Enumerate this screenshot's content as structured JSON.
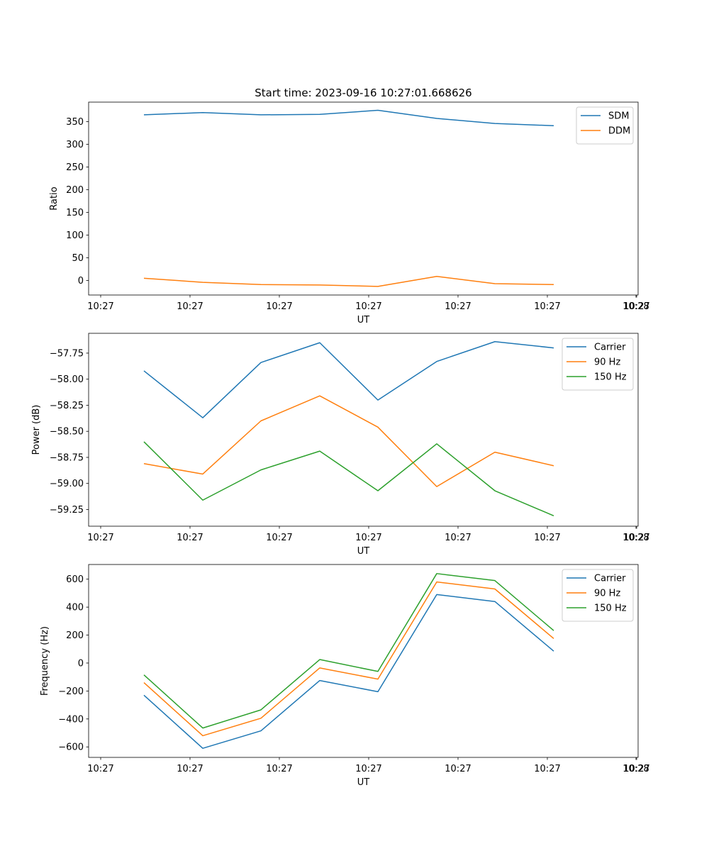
{
  "chart_data": [
    {
      "type": "line",
      "title": "Start time: 2023-09-16 10:27:01.668626",
      "xlabel": "UT",
      "ylabel": "Ratio",
      "x_ticks": [
        "10:27",
        "10:27",
        "10:27",
        "10:27",
        "10:27",
        "10:27",
        "10:27",
        "10:28"
      ],
      "y_ticks": [
        0,
        50,
        100,
        150,
        200,
        250,
        300,
        350
      ],
      "ylim": [
        -32,
        393
      ],
      "legend_position": "top-right",
      "grid": false,
      "series": [
        {
          "name": "SDM",
          "color": "#1f77b4",
          "values": [
            365,
            370,
            365,
            366,
            375,
            357,
            346,
            341
          ]
        },
        {
          "name": "DDM",
          "color": "#ff7f0e",
          "values": [
            5,
            -4,
            -9,
            -10,
            -13,
            9,
            -7,
            -9
          ]
        }
      ]
    },
    {
      "type": "line",
      "title": "",
      "xlabel": "UT",
      "ylabel": "Power (dB)",
      "x_ticks": [
        "10:27",
        "10:27",
        "10:27",
        "10:27",
        "10:27",
        "10:27",
        "10:27",
        "10:28"
      ],
      "y_ticks": [
        -57.75,
        -58.0,
        -58.25,
        -58.5,
        -58.75,
        -59.0,
        -59.25
      ],
      "ylim": [
        -59.41,
        -57.56
      ],
      "legend_position": "top-right",
      "grid": false,
      "series": [
        {
          "name": "Carrier",
          "color": "#1f77b4",
          "values": [
            -57.92,
            -58.37,
            -57.84,
            -57.65,
            -58.2,
            -57.83,
            -57.64,
            -57.7
          ]
        },
        {
          "name": "90 Hz",
          "color": "#ff7f0e",
          "values": [
            -58.81,
            -58.91,
            -58.4,
            -58.16,
            -58.46,
            -59.03,
            -58.7,
            -58.83
          ]
        },
        {
          "name": "150 Hz",
          "color": "#2ca02c",
          "values": [
            -58.6,
            -59.16,
            -58.87,
            -58.69,
            -59.07,
            -58.62,
            -59.07,
            -59.31
          ]
        }
      ]
    },
    {
      "type": "line",
      "title": "",
      "xlabel": "UT",
      "ylabel": "Frequency (Hz)",
      "x_ticks": [
        "10:27",
        "10:27",
        "10:27",
        "10:27",
        "10:27",
        "10:27",
        "10:27",
        "10:28"
      ],
      "y_ticks": [
        600,
        400,
        200,
        0,
        -200,
        -400,
        -600
      ],
      "ylim": [
        -675,
        705
      ],
      "legend_position": "top-right",
      "grid": false,
      "series": [
        {
          "name": "Carrier",
          "color": "#1f77b4",
          "values": [
            -230,
            -610,
            -485,
            -125,
            -205,
            490,
            440,
            85
          ]
        },
        {
          "name": "90 Hz",
          "color": "#ff7f0e",
          "values": [
            -140,
            -520,
            -395,
            -35,
            -115,
            580,
            530,
            175
          ]
        },
        {
          "name": "150 Hz",
          "color": "#2ca02c",
          "values": [
            -85,
            -465,
            -335,
            25,
            -60,
            640,
            590,
            232
          ]
        }
      ]
    }
  ]
}
